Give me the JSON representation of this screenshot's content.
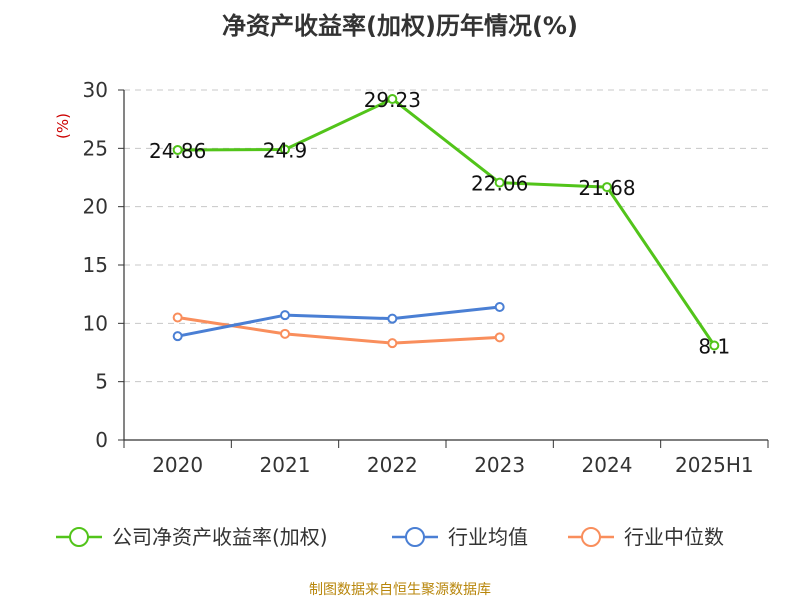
{
  "chart_data": {
    "type": "line",
    "title": "净资产收益率(加权)历年情况(%)",
    "ylabel": "(%)",
    "xlabel": "",
    "categories": [
      "2020",
      "2021",
      "2022",
      "2023",
      "2024",
      "2025H1"
    ],
    "ylim": [
      0,
      30
    ],
    "yticks": [
      0,
      5,
      10,
      15,
      20,
      25,
      30
    ],
    "grid": true,
    "legend_position": "bottom",
    "series": [
      {
        "name": "公司净资产收益率(加权)",
        "color": "#52c41a",
        "values": [
          24.86,
          24.9,
          29.23,
          22.06,
          21.68,
          8.1
        ],
        "labels": [
          "24.86",
          "24.9",
          "29.23",
          "22.06",
          "21.68",
          "8.1"
        ]
      },
      {
        "name": "行业均值",
        "color": "#4a7fd4",
        "values": [
          8.9,
          10.7,
          10.4,
          11.4,
          null,
          null
        ]
      },
      {
        "name": "行业中位数",
        "color": "#f98e5c",
        "values": [
          10.5,
          9.1,
          8.3,
          8.8,
          null,
          null
        ]
      }
    ],
    "source": "制图数据来自恒生聚源数据库"
  }
}
